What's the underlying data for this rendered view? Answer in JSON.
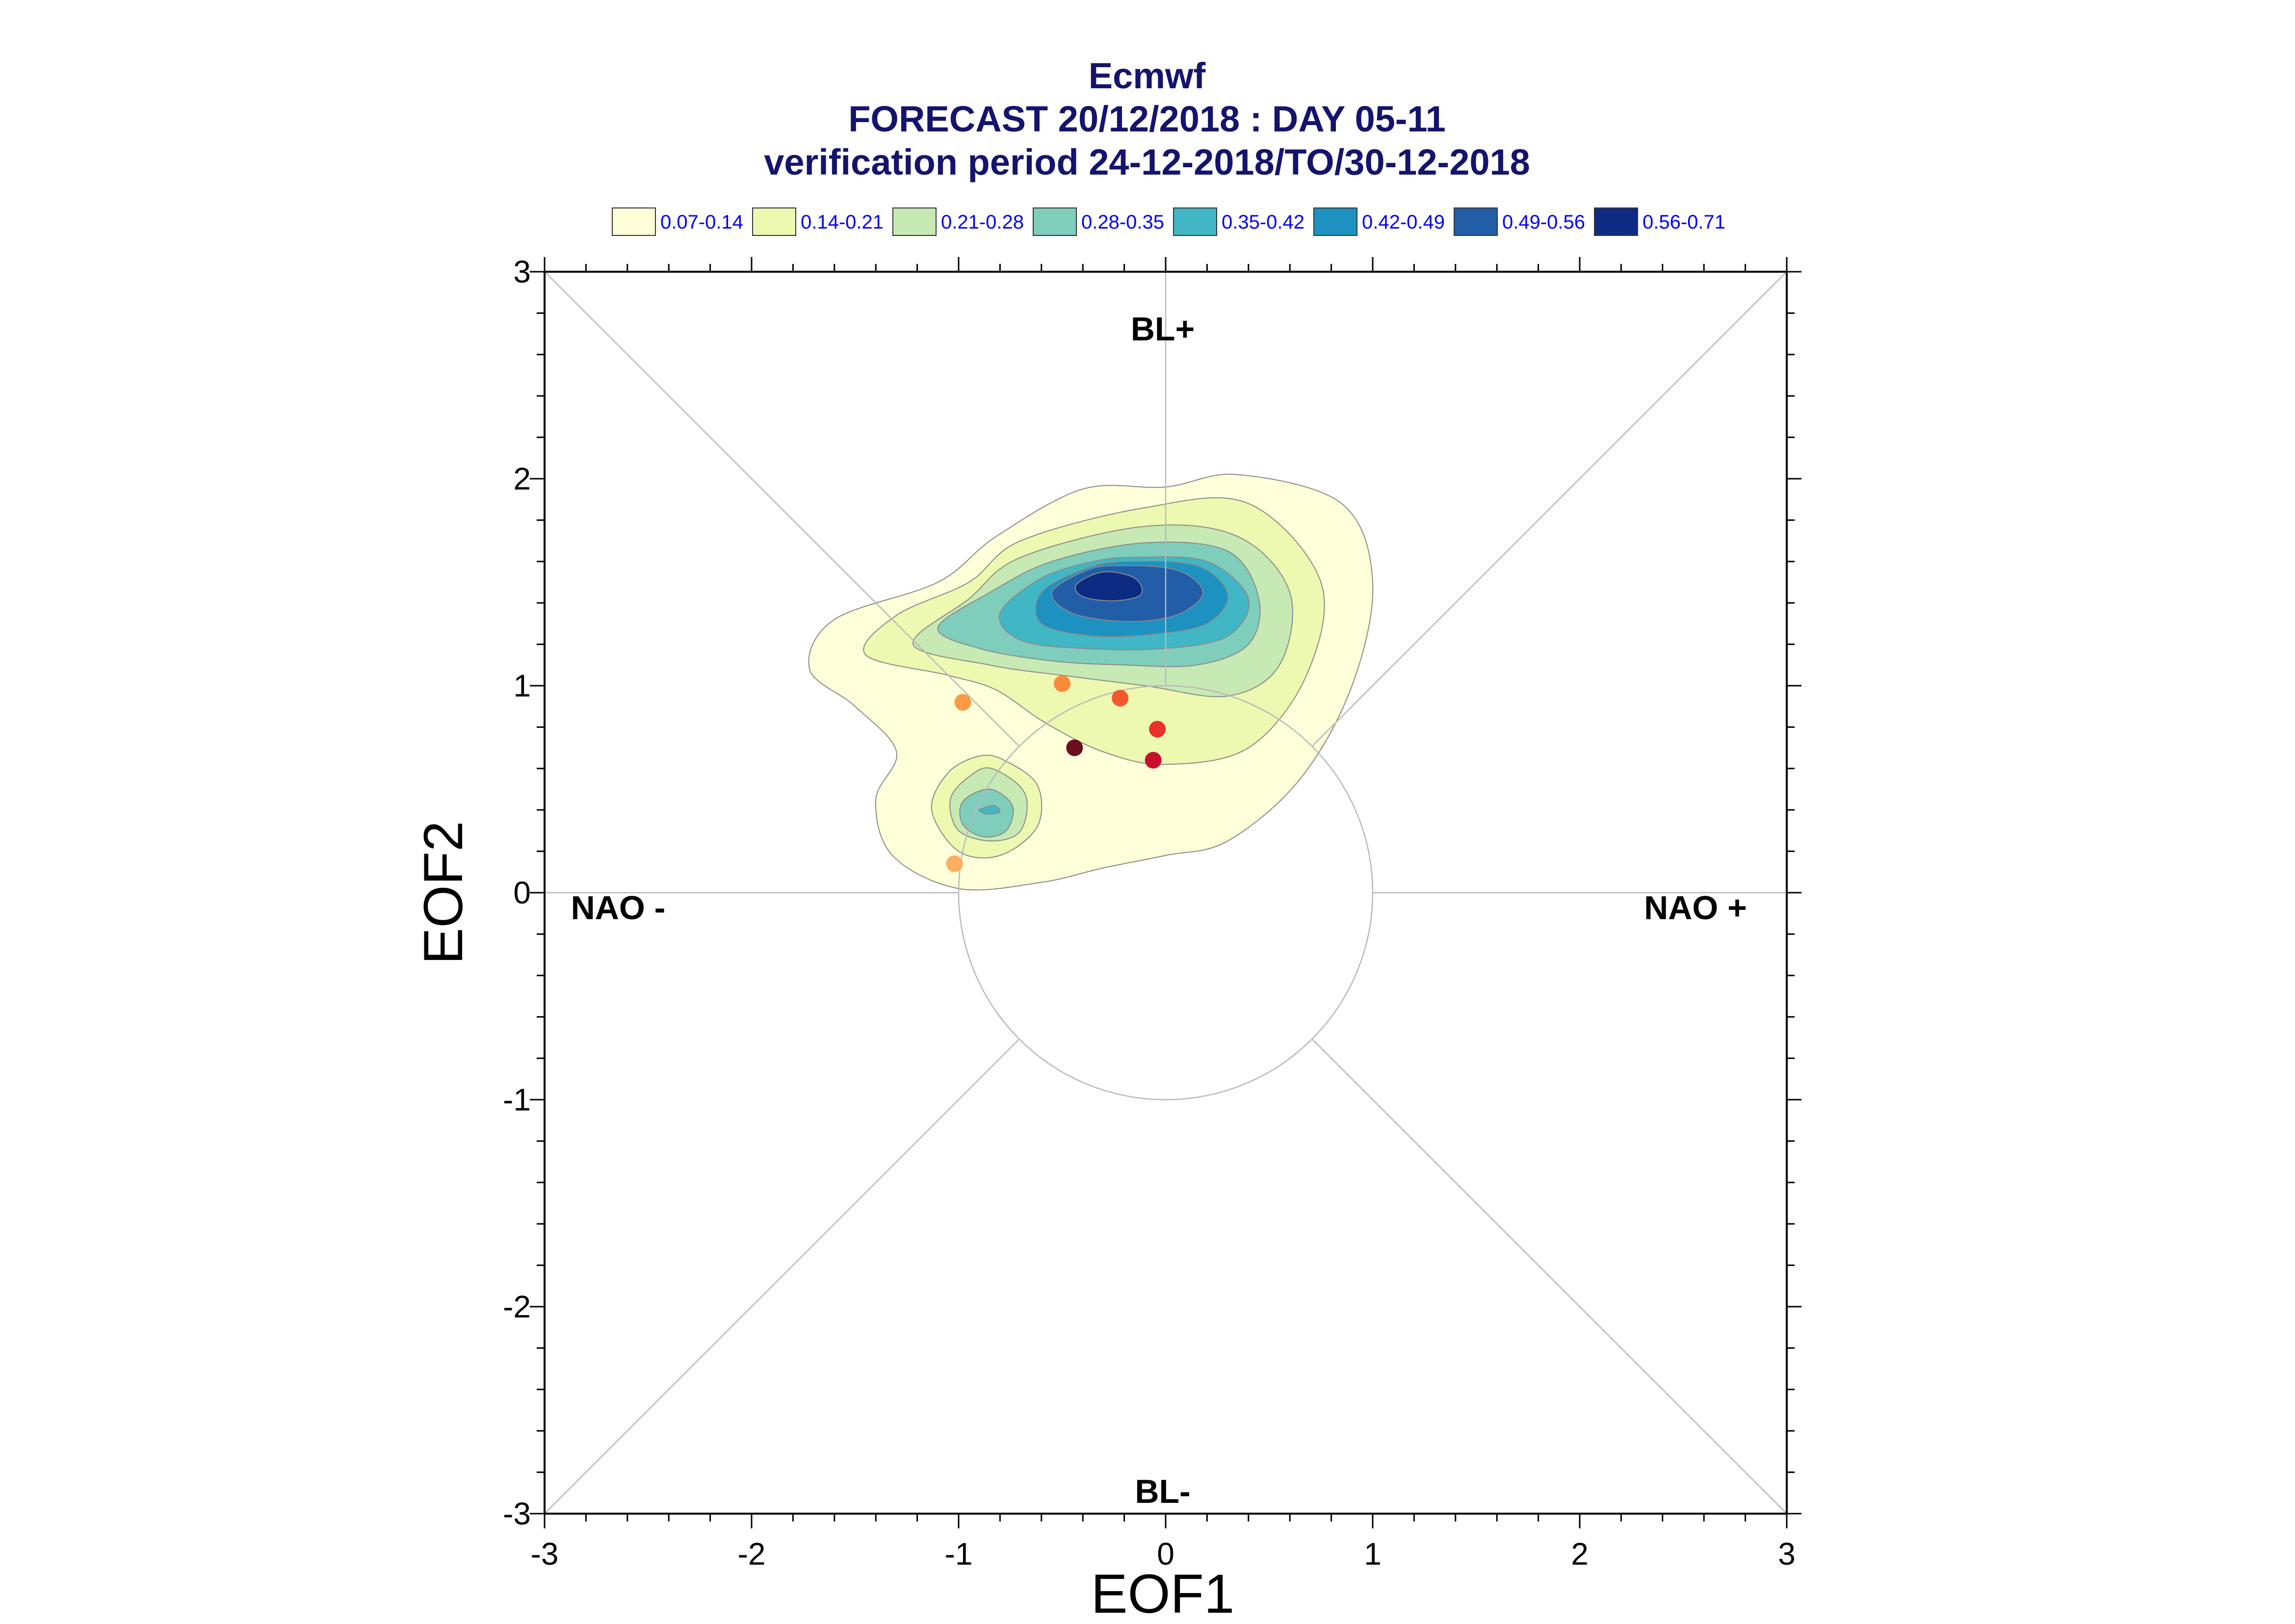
{
  "chart_data": {
    "type": "scatter",
    "title": "Ecmwf",
    "subtitle": "FORECAST 20/12/2018 : DAY 05-11",
    "subtitle2": "verification period 24-12-2018/TO/30-12-2018",
    "xlabel": "EOF1",
    "ylabel": "EOF2",
    "xlim": [
      -3,
      3
    ],
    "ylim": [
      -3,
      3
    ],
    "xticks": [
      "-3",
      "-2",
      "-1",
      "0",
      "1",
      "2",
      "3"
    ],
    "yticks": [
      "-3",
      "-2",
      "-1",
      "0",
      "1",
      "2",
      "3"
    ],
    "regions": {
      "top": "BL+",
      "bottom": "BL-",
      "left": "NAO -",
      "right": "NAO +"
    },
    "unit_circle_radius": 1,
    "grid": false,
    "legend_placement": "top",
    "legend": [
      {
        "label": "0.07-0.14",
        "color": "#ffffd9"
      },
      {
        "label": "0.14-0.21",
        "color": "#edf8b1"
      },
      {
        "label": "0.21-0.28",
        "color": "#c7e9b4"
      },
      {
        "label": "0.28-0.35",
        "color": "#7fcdbb"
      },
      {
        "label": "0.35-0.42",
        "color": "#41b6c4"
      },
      {
        "label": "0.42-0.49",
        "color": "#1d91c0"
      },
      {
        "label": "0.49-0.56",
        "color": "#225ea8"
      },
      {
        "label": "0.56-0.71",
        "color": "#0c2c84"
      }
    ],
    "points": [
      {
        "x": -1.02,
        "y": 0.14,
        "color": "#fdae61"
      },
      {
        "x": -0.98,
        "y": 0.92,
        "color": "#fd9a44"
      },
      {
        "x": -0.5,
        "y": 1.01,
        "color": "#f98b3a"
      },
      {
        "x": -0.22,
        "y": 0.94,
        "color": "#f4562e"
      },
      {
        "x": -0.04,
        "y": 0.79,
        "color": "#e8322a"
      },
      {
        "x": -0.06,
        "y": 0.64,
        "color": "#c8102e"
      },
      {
        "x": -0.44,
        "y": 0.7,
        "color": "#6b0e1e"
      }
    ],
    "density_contours": [
      {
        "level": "0.07-0.14",
        "color": "#ffffd9",
        "path": [
          [
            0,
            1.96
          ],
          [
            0.35,
            2.02
          ],
          [
            0.85,
            1.88
          ],
          [
            1,
            1.5
          ],
          [
            0.9,
            1.0
          ],
          [
            0.65,
            0.55
          ],
          [
            0.3,
            0.25
          ],
          [
            0,
            0.18
          ],
          [
            -0.3,
            0.12
          ],
          [
            -0.6,
            0.05
          ],
          [
            -1.0,
            0.02
          ],
          [
            -1.32,
            0.18
          ],
          [
            -1.4,
            0.45
          ],
          [
            -1.3,
            0.68
          ],
          [
            -1.5,
            0.9
          ],
          [
            -1.72,
            1.08
          ],
          [
            -1.6,
            1.32
          ],
          [
            -1.1,
            1.5
          ],
          [
            -0.82,
            1.72
          ],
          [
            -0.4,
            1.95
          ]
        ]
      },
      {
        "level": "0.14-0.21",
        "color": "#edf8b1",
        "path": [
          [
            -0.1,
            1.86
          ],
          [
            0.4,
            1.88
          ],
          [
            0.75,
            1.5
          ],
          [
            0.68,
            1.05
          ],
          [
            0.4,
            0.7
          ],
          [
            0,
            0.62
          ],
          [
            -0.3,
            0.68
          ],
          [
            -0.58,
            0.82
          ],
          [
            -0.82,
            0.98
          ],
          [
            -1.05,
            1.05
          ],
          [
            -1.45,
            1.15
          ],
          [
            -1.3,
            1.34
          ],
          [
            -0.95,
            1.5
          ],
          [
            -0.7,
            1.7
          ]
        ]
      },
      {
        "level": "0.21-0.28",
        "color": "#c7e9b4",
        "path": [
          [
            -0.1,
            1.77
          ],
          [
            0.35,
            1.72
          ],
          [
            0.6,
            1.45
          ],
          [
            0.55,
            1.1
          ],
          [
            0.3,
            0.95
          ],
          [
            -0.1,
            1.0
          ],
          [
            -0.5,
            1.05
          ],
          [
            -0.85,
            1.1
          ],
          [
            -1.22,
            1.2
          ],
          [
            -0.95,
            1.42
          ],
          [
            -0.7,
            1.62
          ]
        ]
      },
      {
        "level": "0.28-0.35",
        "color": "#7fcdbb",
        "path": [
          [
            -0.1,
            1.69
          ],
          [
            0.3,
            1.65
          ],
          [
            0.45,
            1.42
          ],
          [
            0.4,
            1.2
          ],
          [
            0.15,
            1.1
          ],
          [
            -0.2,
            1.1
          ],
          [
            -0.55,
            1.12
          ],
          [
            -0.9,
            1.18
          ],
          [
            -1.1,
            1.28
          ],
          [
            -0.85,
            1.45
          ],
          [
            -0.55,
            1.6
          ]
        ]
      },
      {
        "level": "0.35-0.42",
        "color": "#41b6c4",
        "path": [
          [
            -0.15,
            1.62
          ],
          [
            0.2,
            1.6
          ],
          [
            0.4,
            1.42
          ],
          [
            0.3,
            1.24
          ],
          [
            0,
            1.18
          ],
          [
            -0.4,
            1.18
          ],
          [
            -0.7,
            1.22
          ],
          [
            -0.8,
            1.35
          ],
          [
            -0.6,
            1.52
          ],
          [
            -0.35,
            1.6
          ]
        ]
      },
      {
        "level": "0.42-0.49",
        "color": "#1d91c0",
        "path": [
          [
            -0.2,
            1.6
          ],
          [
            0.15,
            1.58
          ],
          [
            0.3,
            1.44
          ],
          [
            0.2,
            1.3
          ],
          [
            -0.05,
            1.25
          ],
          [
            -0.35,
            1.24
          ],
          [
            -0.6,
            1.3
          ],
          [
            -0.6,
            1.45
          ],
          [
            -0.4,
            1.56
          ]
        ]
      },
      {
        "level": "0.49-0.56",
        "color": "#225ea8",
        "path": [
          [
            -0.25,
            1.58
          ],
          [
            0.05,
            1.56
          ],
          [
            0.18,
            1.45
          ],
          [
            0.05,
            1.34
          ],
          [
            -0.2,
            1.31
          ],
          [
            -0.45,
            1.35
          ],
          [
            -0.55,
            1.45
          ],
          [
            -0.4,
            1.55
          ]
        ]
      },
      {
        "level": "0.56-0.71",
        "color": "#0c2c84",
        "path": [
          [
            -0.3,
            1.55
          ],
          [
            -0.15,
            1.52
          ],
          [
            -0.12,
            1.44
          ],
          [
            -0.25,
            1.41
          ],
          [
            -0.4,
            1.43
          ],
          [
            -0.43,
            1.49
          ]
        ]
      },
      {
        "level": "0.14-0.21",
        "color": "#edf8b1",
        "path": [
          [
            -0.78,
            0.64
          ],
          [
            -0.62,
            0.52
          ],
          [
            -0.62,
            0.32
          ],
          [
            -0.8,
            0.18
          ],
          [
            -1.0,
            0.2
          ],
          [
            -1.13,
            0.4
          ],
          [
            -1.05,
            0.58
          ],
          [
            -0.9,
            0.66
          ]
        ]
      },
      {
        "level": "0.21-0.28",
        "color": "#c7e9b4",
        "path": [
          [
            -0.84,
            0.6
          ],
          [
            -0.68,
            0.48
          ],
          [
            -0.7,
            0.3
          ],
          [
            -0.84,
            0.25
          ],
          [
            -1.0,
            0.3
          ],
          [
            -1.04,
            0.45
          ],
          [
            -0.95,
            0.56
          ]
        ]
      },
      {
        "level": "0.28-0.35",
        "color": "#7fcdbb",
        "path": [
          [
            -0.85,
            0.5
          ],
          [
            -0.74,
            0.42
          ],
          [
            -0.77,
            0.3
          ],
          [
            -0.88,
            0.27
          ],
          [
            -0.98,
            0.33
          ],
          [
            -0.98,
            0.44
          ]
        ]
      },
      {
        "level": "0.35-0.42",
        "color": "#41b6c4",
        "path": [
          [
            -0.83,
            0.42
          ],
          [
            -0.8,
            0.39
          ],
          [
            -0.86,
            0.38
          ],
          [
            -0.9,
            0.4
          ]
        ]
      }
    ]
  }
}
